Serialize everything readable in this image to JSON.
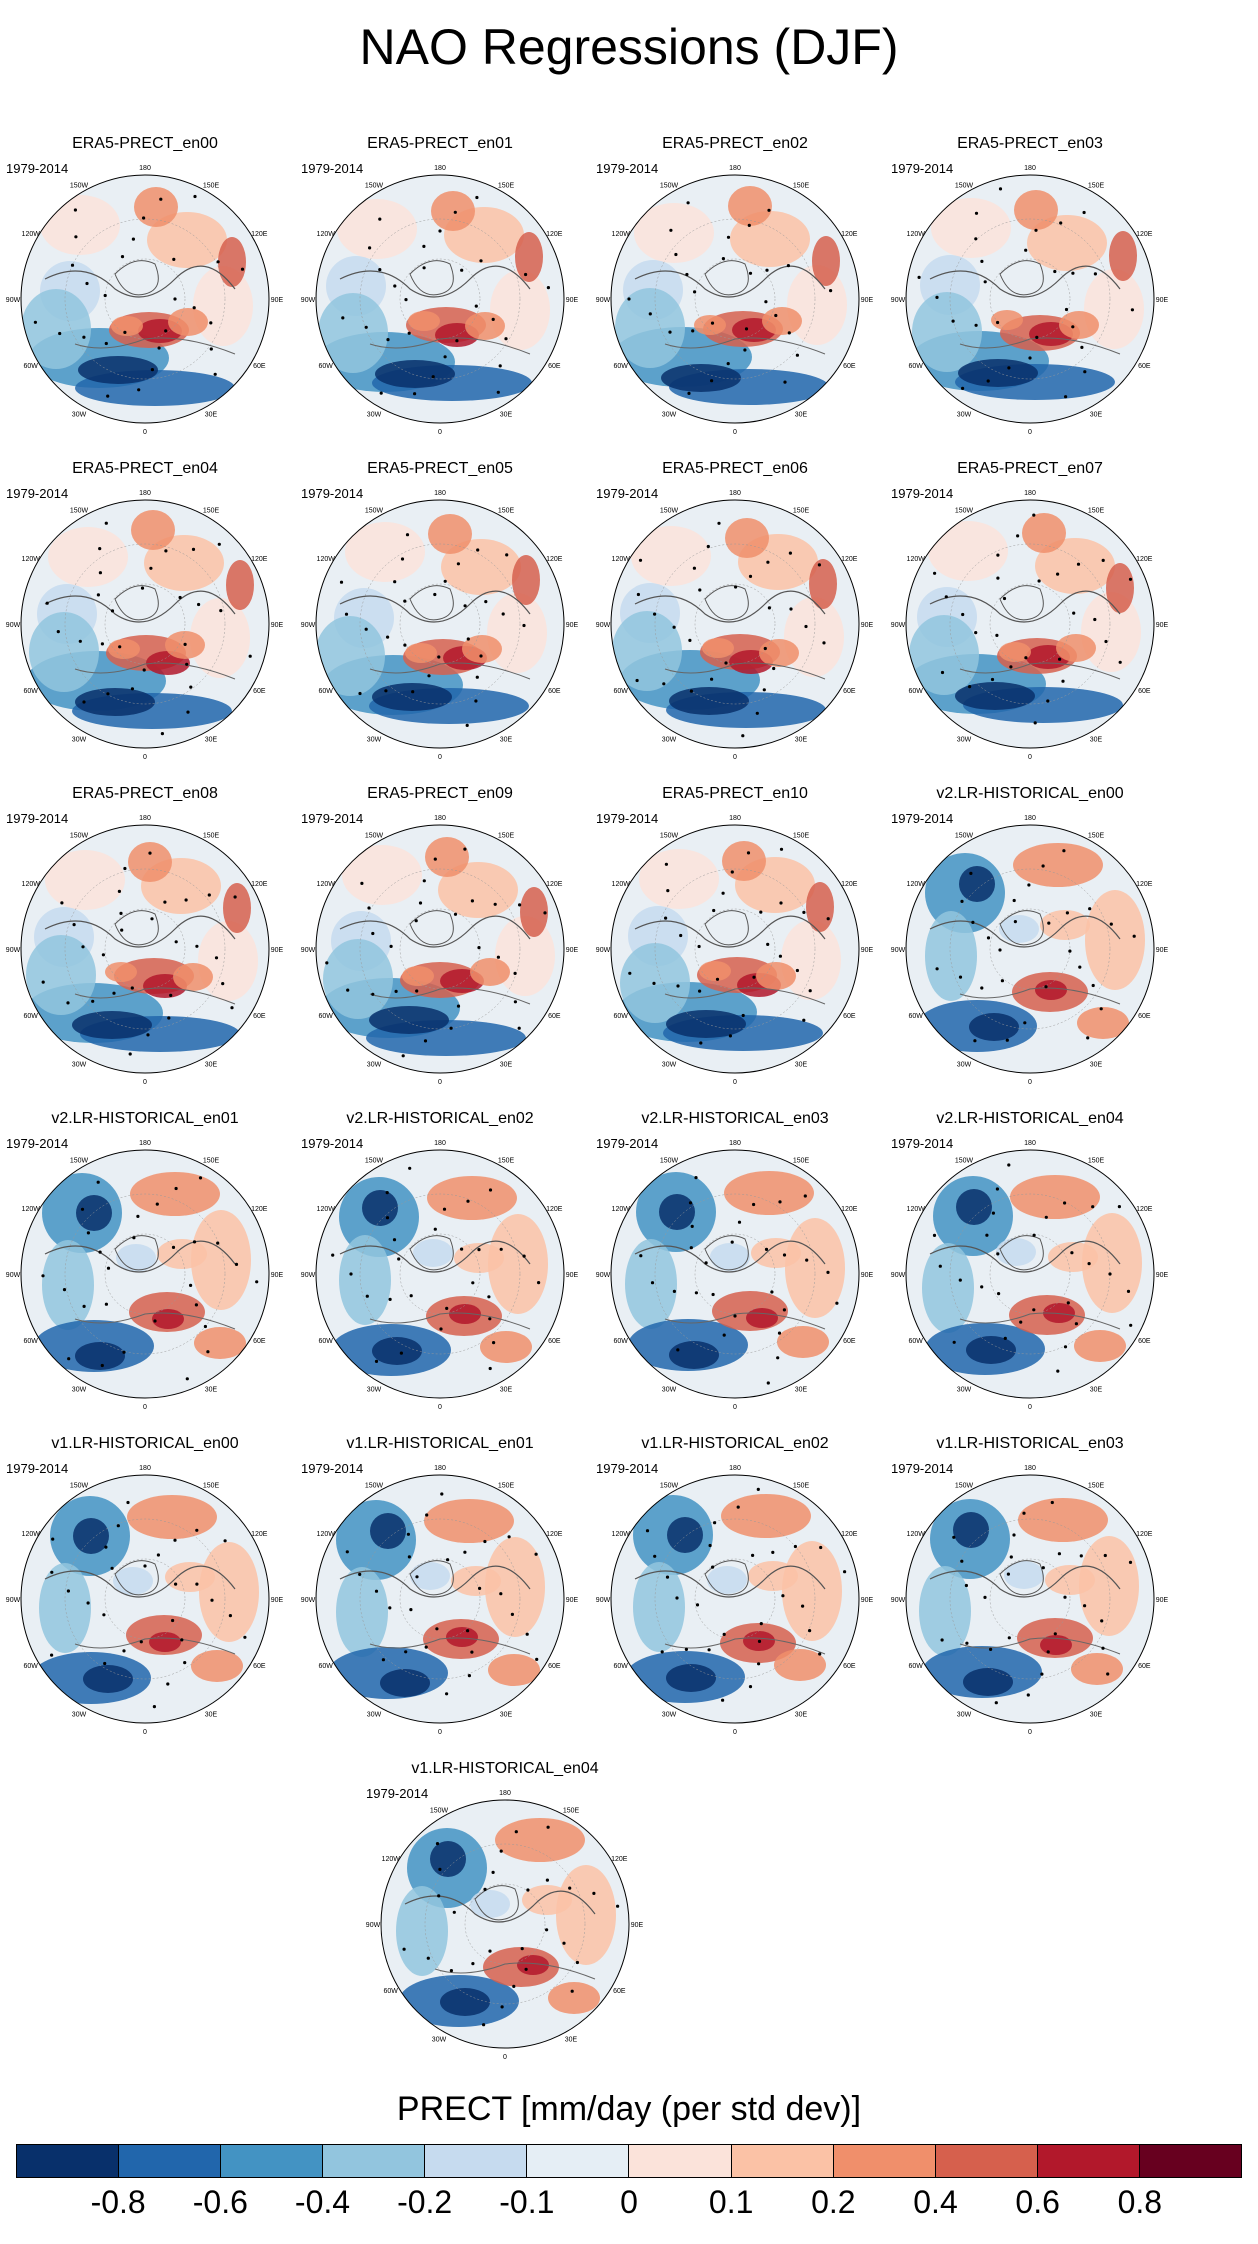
{
  "title": "NAO Regressions (DJF)",
  "period_label": "1979-2014",
  "lon_labels": [
    "180",
    "150E",
    "120E",
    "90E",
    "60E",
    "30E",
    "0",
    "30W",
    "60W",
    "90W",
    "120W",
    "150W"
  ],
  "panels": [
    {
      "title": "ERA5-PRECT_en00",
      "style": "era5"
    },
    {
      "title": "ERA5-PRECT_en01",
      "style": "era5"
    },
    {
      "title": "ERA5-PRECT_en02",
      "style": "era5"
    },
    {
      "title": "ERA5-PRECT_en03",
      "style": "era5"
    },
    {
      "title": "ERA5-PRECT_en04",
      "style": "era5"
    },
    {
      "title": "ERA5-PRECT_en05",
      "style": "era5"
    },
    {
      "title": "ERA5-PRECT_en06",
      "style": "era5"
    },
    {
      "title": "ERA5-PRECT_en07",
      "style": "era5"
    },
    {
      "title": "ERA5-PRECT_en08",
      "style": "era5"
    },
    {
      "title": "ERA5-PRECT_en09",
      "style": "era5"
    },
    {
      "title": "ERA5-PRECT_en10",
      "style": "era5"
    },
    {
      "title": "v2.LR-HISTORICAL_en00",
      "style": "model"
    },
    {
      "title": "v2.LR-HISTORICAL_en01",
      "style": "model"
    },
    {
      "title": "v2.LR-HISTORICAL_en02",
      "style": "model"
    },
    {
      "title": "v2.LR-HISTORICAL_en03",
      "style": "model"
    },
    {
      "title": "v2.LR-HISTORICAL_en04",
      "style": "model"
    },
    {
      "title": "v1.LR-HISTORICAL_en00",
      "style": "model"
    },
    {
      "title": "v1.LR-HISTORICAL_en01",
      "style": "model"
    },
    {
      "title": "v1.LR-HISTORICAL_en02",
      "style": "model"
    },
    {
      "title": "v1.LR-HISTORICAL_en03",
      "style": "model"
    },
    {
      "title": "v1.LR-HISTORICAL_en04",
      "style": "model"
    }
  ],
  "colorbar": {
    "title": "PRECT [mm/day (per std dev)]",
    "colors": [
      "#08306b",
      "#2166ac",
      "#4393c3",
      "#92c5de",
      "#c6dbef",
      "#e5eef5",
      "#fbe3da",
      "#fbc2a6",
      "#f08f6b",
      "#d6604d",
      "#b2182b",
      "#67001f"
    ],
    "labels": [
      "-0.8",
      "-0.6",
      "-0.4",
      "-0.2",
      "-0.1",
      "0",
      "0.1",
      "0.2",
      "0.4",
      "0.6",
      "0.8"
    ]
  }
}
